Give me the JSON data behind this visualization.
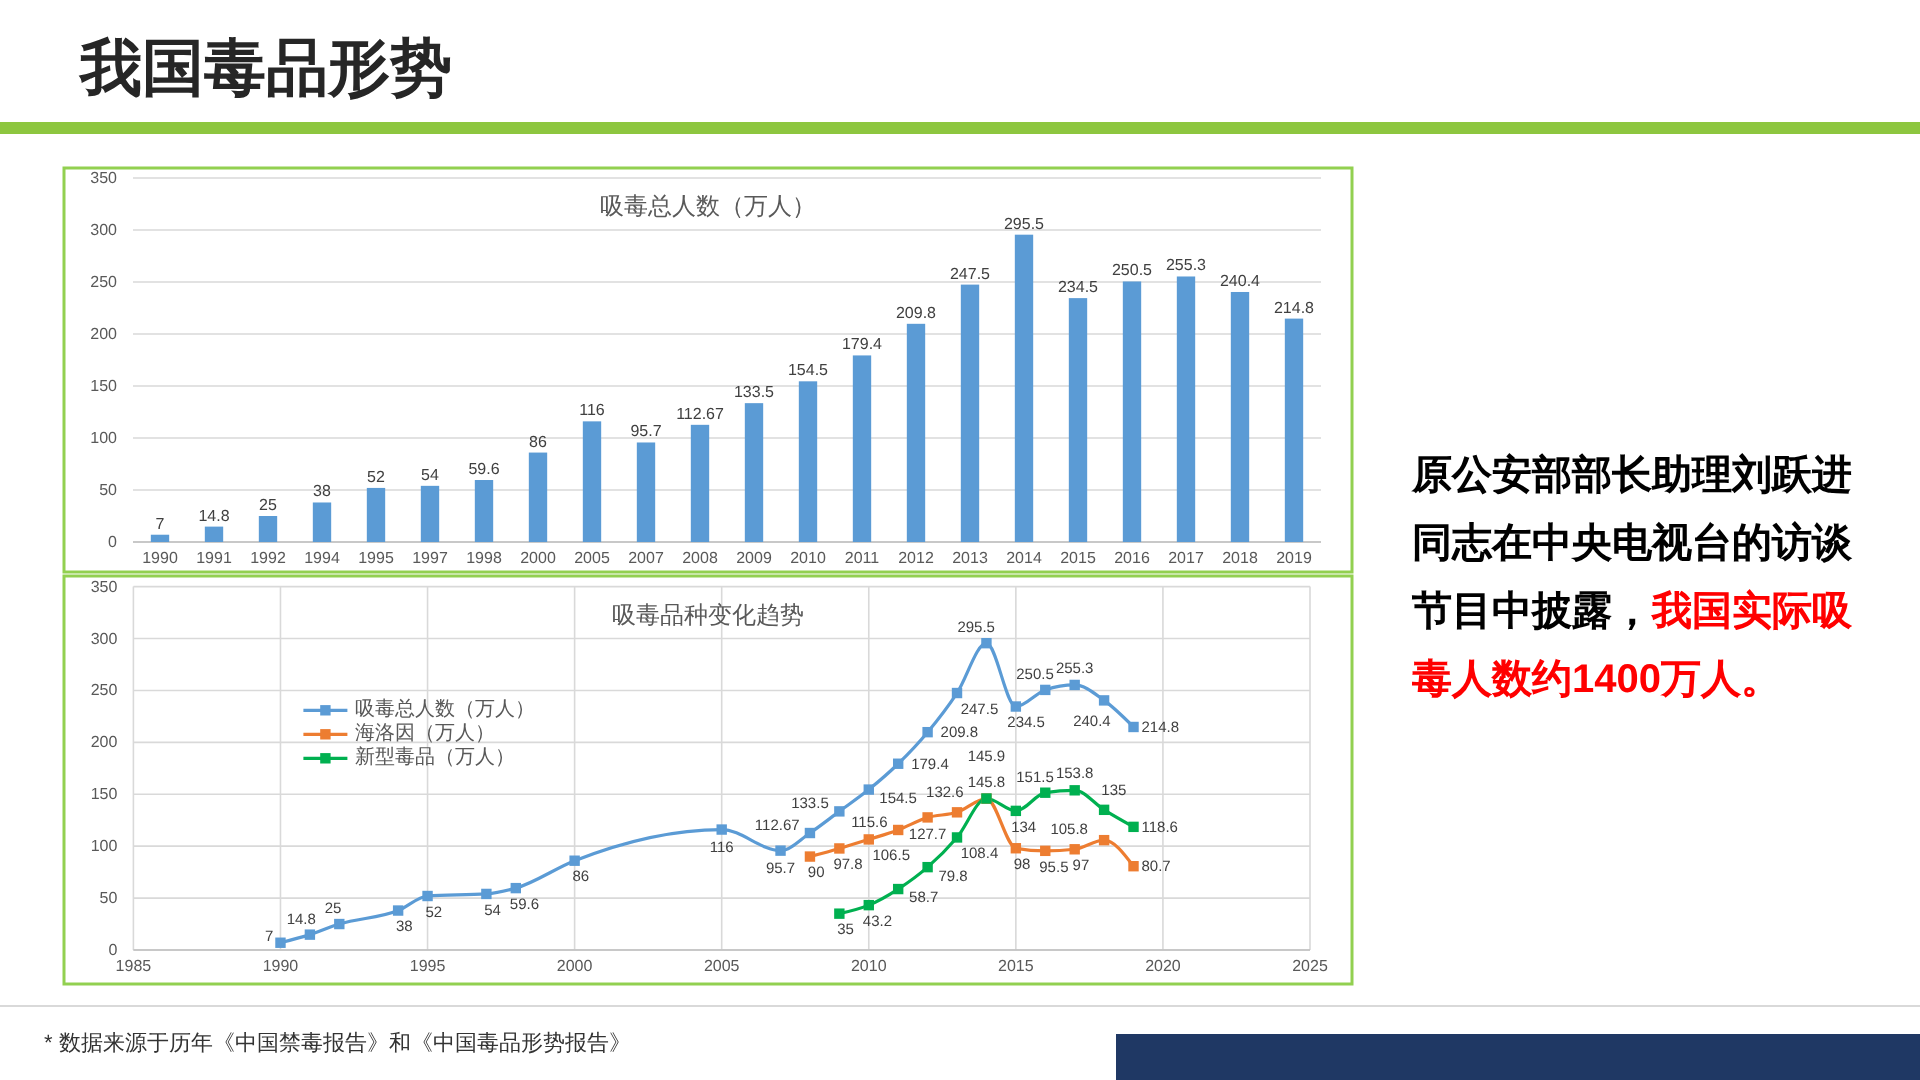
{
  "chart_data": [
    {
      "type": "other",
      "title": "我国毒品形势",
      "annotations": [
        "原公安部部长助理刘跃进同志在中央电视台的访谈",
        "节目中披露，",
        "我国实际吸",
        "毒人数约1400万人。",
        "* 数据来源于历年《中国禁毒报告》和《中国毒品形势报告》"
      ],
      "colors": [
        "#000000",
        "#000000",
        "#ff0000",
        "#ff0000",
        "#333333"
      ]
    },
    {
      "type": "bar",
      "title": "吸毒总人数（万人）",
      "categories": [
        "1990",
        "1991",
        "1992",
        "1994",
        "1995",
        "1997",
        "1998",
        "2000",
        "2005",
        "2007",
        "2008",
        "2009",
        "2010",
        "2011",
        "2012",
        "2013",
        "2014",
        "2015",
        "2016",
        "2017",
        "2018",
        "2019"
      ],
      "values": [
        7,
        14.8,
        25,
        38,
        52,
        54,
        59.6,
        86,
        116,
        95.7,
        112.67,
        133.5,
        154.5,
        179.4,
        209.8,
        247.5,
        295.5,
        234.5,
        250.5,
        255.3,
        240.4,
        214.8
      ],
      "color": "#5b9bd5",
      "ylim": [
        0,
        350
      ],
      "yticks": [
        0,
        50,
        100,
        150,
        200,
        250,
        300,
        350
      ],
      "grid": "y",
      "data_labels": true
    },
    {
      "type": "line",
      "title": "吸毒品种变化趋势",
      "series": [
        {
          "name": "吸毒总人数（万人）",
          "color": "#5b9bd5",
          "x": [
            1990,
            1991,
            1992,
            1994,
            1995,
            1997,
            1998,
            2000,
            2005,
            2007,
            2008,
            2009,
            2010,
            2011,
            2012,
            2013,
            2014,
            2015,
            2016,
            2017,
            2018,
            2019
          ],
          "values": [
            7,
            14.8,
            25,
            38,
            52,
            54,
            59.6,
            86,
            116,
            95.7,
            112.67,
            133.5,
            154.5,
            179.4,
            209.8,
            247.5,
            295.5,
            234.5,
            250.5,
            255.3,
            240.4,
            214.8
          ]
        },
        {
          "name": "海洛因（万人）",
          "color": "#ed7d31",
          "x": [
            2008,
            2009,
            2010,
            2011,
            2012,
            2013,
            2014,
            2015,
            2016,
            2017,
            2018,
            2019
          ],
          "values": [
            90,
            97.8,
            106.5,
            115.6,
            127.7,
            132.6,
            145.8,
            98,
            95.5,
            97,
            105.8,
            80.7
          ]
        },
        {
          "name": "新型毒品（万人）",
          "color": "#00b050",
          "x": [
            2009,
            2010,
            2011,
            2012,
            2013,
            2014,
            2015,
            2016,
            2017,
            2018,
            2019
          ],
          "values": [
            35,
            43.2,
            58.7,
            79.8,
            108.4,
            145.9,
            134,
            151.5,
            153.8,
            135,
            118.6
          ]
        }
      ],
      "xlim": [
        1985,
        2025
      ],
      "xticks": [
        1985,
        1990,
        1995,
        2000,
        2005,
        2010,
        2015,
        2020,
        2025
      ],
      "ylim": [
        0,
        350
      ],
      "yticks": [
        0,
        50,
        100,
        150,
        200,
        250,
        300,
        350
      ],
      "grid": true,
      "legend": "left",
      "marker": "square",
      "data_labels": true
    }
  ]
}
